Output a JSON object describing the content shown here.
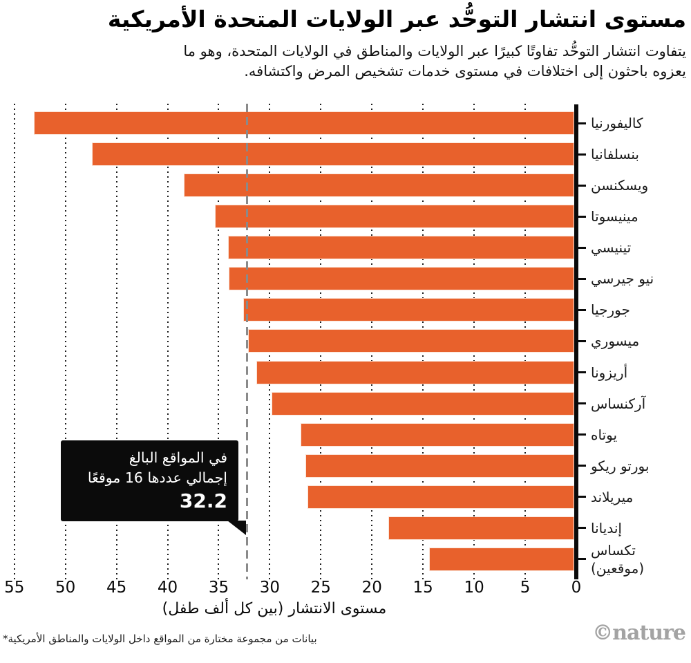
{
  "header": {
    "title": "مستوى انتشار التوحُّد عبر الولايات المتحدة الأمريكية",
    "subtitle_line1": "يتفاوت انتشار التوحُّد تفاوتًا كبيرًا عبر الولايات والمناطق في الولايات المتحدة، وهو ما",
    "subtitle_line2": "يعزوه باحثون إلى اختلافات في مستوى خدمات تشخيص المرض واكتشافه."
  },
  "chart_data": {
    "type": "bar",
    "orientation": "horizontal_rtl",
    "title": "مستوى انتشار التوحُّد عبر الولايات المتحدة الأمريكية",
    "xlabel": "مستوى الانتشار (بين كل ألف طفل)",
    "xlim": [
      0,
      55
    ],
    "x_ticks": [
      55,
      50,
      45,
      40,
      35,
      30,
      25,
      20,
      15,
      10,
      5,
      0
    ],
    "grid": "dotted_vertical",
    "bar_color": "#E8612C",
    "categories": [
      "كاليفورنيا",
      "بنسلفانيا",
      "ويسكنسن",
      "مينيسوتا",
      "تينيسي",
      "نيو جيرسي",
      "جورجيا",
      "ميسوري",
      "أريزونا",
      "آركنساس",
      "يوتاه",
      "بورتو ريكو",
      "ميريلاند",
      "إنديانا",
      "تكساس\n(موقعين)"
    ],
    "values": [
      53.1,
      47.4,
      38.4,
      35.4,
      34.1,
      34.0,
      32.6,
      32.1,
      31.3,
      29.8,
      27.0,
      26.5,
      26.3,
      18.4,
      14.4
    ],
    "reference_line": {
      "value": 32.2,
      "style": "dashed",
      "color": "#8a8a8a"
    },
    "annotation": {
      "line1": "في المواقع البالغ",
      "line2": "إجمالي عددها 16 موقعًا",
      "value": "32.2"
    }
  },
  "footnote": "بيانات من مجموعة مختارة من المواقع داخل الولايات والمناطق الأمريكية*",
  "credit": "©nature"
}
